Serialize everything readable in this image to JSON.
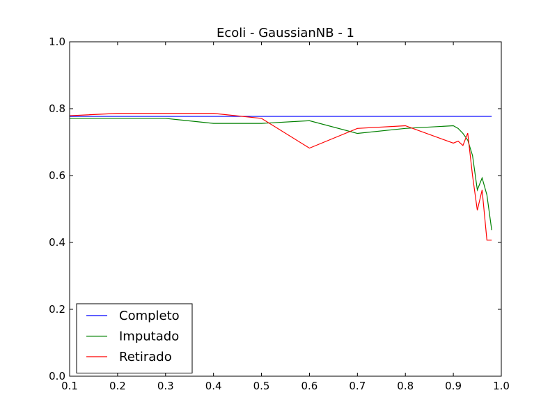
{
  "chart_data": {
    "type": "line",
    "title": "Ecoli - GaussianNB - 1",
    "xlabel": "",
    "ylabel": "",
    "xlim": [
      0.1,
      1.0
    ],
    "ylim": [
      0.0,
      1.0
    ],
    "grid": false,
    "legend_position": "lower-left",
    "x_ticks": [
      0.1,
      0.2,
      0.3,
      0.4,
      0.5,
      0.6,
      0.7,
      0.8,
      0.9,
      1.0
    ],
    "x_tick_labels": [
      "0.1",
      "0.2",
      "0.3",
      "0.4",
      "0.5",
      "0.6",
      "0.7",
      "0.8",
      "0.9",
      "1.0"
    ],
    "y_ticks": [
      0.0,
      0.2,
      0.4,
      0.6,
      0.8,
      1.0
    ],
    "y_tick_labels": [
      "0.0",
      "0.2",
      "0.4",
      "0.6",
      "0.8",
      "1.0"
    ],
    "series": [
      {
        "name": "Completo",
        "color": "#0000ff",
        "x": [
          0.1,
          0.98
        ],
        "y": [
          0.777,
          0.777
        ]
      },
      {
        "name": "Imputado",
        "color": "#008000",
        "x": [
          0.1,
          0.2,
          0.3,
          0.4,
          0.5,
          0.6,
          0.7,
          0.8,
          0.9,
          0.91,
          0.92,
          0.93,
          0.94,
          0.95,
          0.96,
          0.97,
          0.98
        ],
        "y": [
          0.771,
          0.771,
          0.771,
          0.756,
          0.756,
          0.764,
          0.726,
          0.741,
          0.749,
          0.741,
          0.726,
          0.706,
          0.66,
          0.557,
          0.593,
          0.542,
          0.437
        ]
      },
      {
        "name": "Retirado",
        "color": "#ff0000",
        "x": [
          0.1,
          0.2,
          0.3,
          0.4,
          0.5,
          0.6,
          0.7,
          0.8,
          0.9,
          0.91,
          0.92,
          0.93,
          0.94,
          0.95,
          0.96,
          0.97,
          0.98
        ],
        "y": [
          0.779,
          0.786,
          0.786,
          0.786,
          0.771,
          0.682,
          0.741,
          0.749,
          0.697,
          0.703,
          0.69,
          0.727,
          0.6,
          0.496,
          0.557,
          0.407,
          0.407
        ]
      }
    ]
  }
}
